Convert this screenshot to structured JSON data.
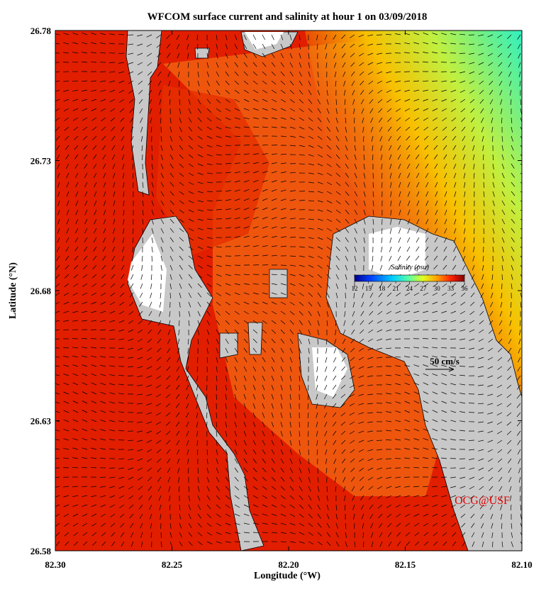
{
  "title": "WFCOM surface current and salinity at hour 1 on 03/09/2018",
  "x_axis": {
    "label": "Longitude (°W)",
    "lim": [
      82.3,
      82.1
    ],
    "ticks": [
      {
        "value": 82.3,
        "label": "82.30"
      },
      82.25,
      {
        "value": 82.2,
        "label": "82.20"
      },
      82.15,
      {
        "value": 82.1,
        "label": "82.10"
      }
    ]
  },
  "y_axis": {
    "label": "Latitude (°N)",
    "lim": [
      26.58,
      26.78
    ],
    "ticks": [
      26.58,
      26.63,
      26.68,
      26.73,
      26.78
    ]
  },
  "colorbar": {
    "title": "Salinity (psu)",
    "lim": [
      12,
      36
    ],
    "ticks": [
      12,
      15,
      18,
      21,
      24,
      27,
      30,
      33,
      36
    ]
  },
  "scale_label": "50 cm/s",
  "credit": "OCG@USF"
}
